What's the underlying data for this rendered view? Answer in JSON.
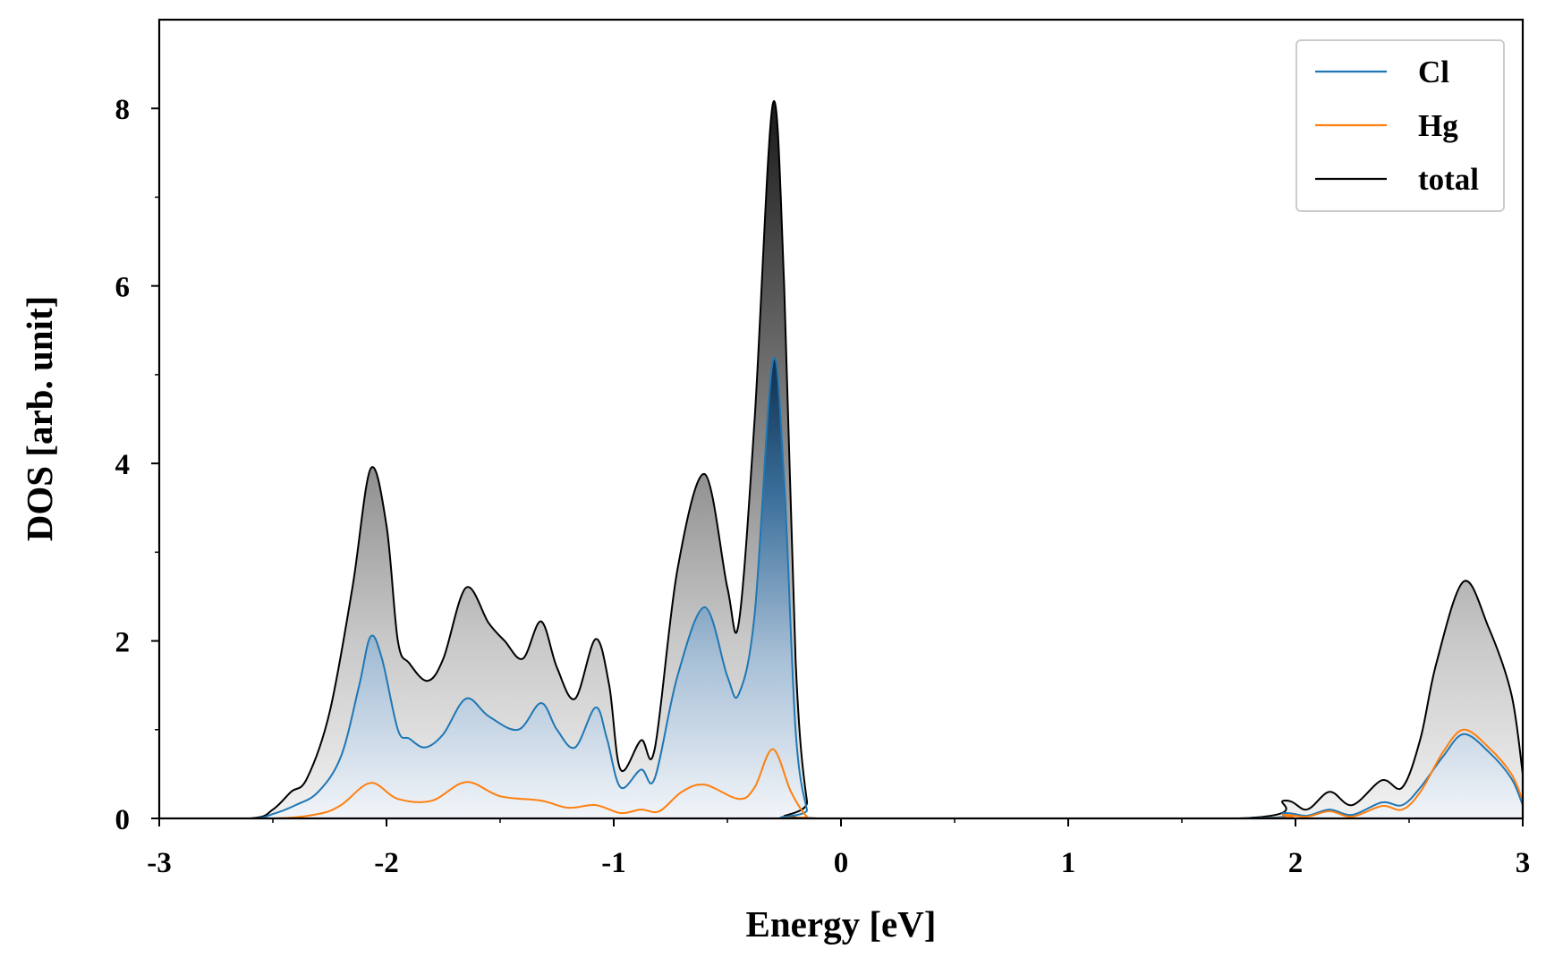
{
  "chart_data": {
    "type": "line",
    "xlabel": "Energy [eV]",
    "ylabel": "DOS [arb. unit]",
    "xlim": [
      -3,
      3
    ],
    "ylim": [
      0,
      9
    ],
    "xticks": [
      "-3",
      "-2",
      "-1",
      "0",
      "1",
      "2",
      "3"
    ],
    "yticks": [
      "0",
      "2",
      "4",
      "6",
      "8"
    ],
    "legend_position": "top-right",
    "colors": {
      "Cl": "#1f77b4",
      "Hg": "#ff7f0e",
      "total": "#000000"
    },
    "series": [
      {
        "name": "Cl",
        "color": "#1f77b4",
        "fill": "blue-gradient",
        "points": [
          [
            -3.0,
            0
          ],
          [
            -2.6,
            0
          ],
          [
            -2.5,
            0.05
          ],
          [
            -2.4,
            0.15
          ],
          [
            -2.3,
            0.3
          ],
          [
            -2.2,
            0.7
          ],
          [
            -2.12,
            1.5
          ],
          [
            -2.07,
            2.05
          ],
          [
            -2.02,
            1.8
          ],
          [
            -1.95,
            1.0
          ],
          [
            -1.9,
            0.9
          ],
          [
            -1.83,
            0.8
          ],
          [
            -1.75,
            0.95
          ],
          [
            -1.65,
            1.35
          ],
          [
            -1.55,
            1.15
          ],
          [
            -1.42,
            1.0
          ],
          [
            -1.32,
            1.3
          ],
          [
            -1.25,
            1.0
          ],
          [
            -1.17,
            0.8
          ],
          [
            -1.08,
            1.25
          ],
          [
            -1.03,
            0.9
          ],
          [
            -0.97,
            0.35
          ],
          [
            -0.88,
            0.55
          ],
          [
            -0.82,
            0.45
          ],
          [
            -0.72,
            1.6
          ],
          [
            -0.6,
            2.38
          ],
          [
            -0.5,
            1.6
          ],
          [
            -0.45,
            1.4
          ],
          [
            -0.38,
            2.3
          ],
          [
            -0.3,
            5.15
          ],
          [
            -0.25,
            3.8
          ],
          [
            -0.2,
            1.0
          ],
          [
            -0.15,
            0.1
          ],
          [
            -0.12,
            0
          ],
          [
            1.75,
            0
          ],
          [
            1.95,
            0.06
          ],
          [
            2.05,
            0.03
          ],
          [
            2.15,
            0.1
          ],
          [
            2.25,
            0.04
          ],
          [
            2.38,
            0.18
          ],
          [
            2.47,
            0.15
          ],
          [
            2.55,
            0.35
          ],
          [
            2.65,
            0.7
          ],
          [
            2.74,
            0.95
          ],
          [
            2.85,
            0.75
          ],
          [
            2.95,
            0.45
          ],
          [
            3.0,
            0.15
          ]
        ]
      },
      {
        "name": "Hg",
        "color": "#ff7f0e",
        "fill": "none",
        "points": [
          [
            -3.0,
            0
          ],
          [
            -2.5,
            0
          ],
          [
            -2.3,
            0.05
          ],
          [
            -2.2,
            0.15
          ],
          [
            -2.07,
            0.4
          ],
          [
            -1.95,
            0.22
          ],
          [
            -1.8,
            0.2
          ],
          [
            -1.65,
            0.41
          ],
          [
            -1.5,
            0.25
          ],
          [
            -1.32,
            0.2
          ],
          [
            -1.2,
            0.12
          ],
          [
            -1.08,
            0.15
          ],
          [
            -0.97,
            0.06
          ],
          [
            -0.88,
            0.1
          ],
          [
            -0.8,
            0.08
          ],
          [
            -0.7,
            0.3
          ],
          [
            -0.6,
            0.38
          ],
          [
            -0.45,
            0.22
          ],
          [
            -0.38,
            0.35
          ],
          [
            -0.3,
            0.78
          ],
          [
            -0.22,
            0.3
          ],
          [
            -0.15,
            0.02
          ],
          [
            -0.1,
            0
          ],
          [
            1.8,
            0
          ],
          [
            1.95,
            0.04
          ],
          [
            2.05,
            0.02
          ],
          [
            2.15,
            0.08
          ],
          [
            2.25,
            0.02
          ],
          [
            2.38,
            0.14
          ],
          [
            2.47,
            0.1
          ],
          [
            2.55,
            0.3
          ],
          [
            2.65,
            0.75
          ],
          [
            2.74,
            1.0
          ],
          [
            2.85,
            0.8
          ],
          [
            2.95,
            0.5
          ],
          [
            3.0,
            0.2
          ]
        ]
      },
      {
        "name": "total",
        "color": "#000000",
        "fill": "gray-gradient",
        "points": [
          [
            -3.0,
            0
          ],
          [
            -2.6,
            0
          ],
          [
            -2.5,
            0.1
          ],
          [
            -2.42,
            0.3
          ],
          [
            -2.35,
            0.45
          ],
          [
            -2.25,
            1.2
          ],
          [
            -2.15,
            2.6
          ],
          [
            -2.07,
            3.94
          ],
          [
            -2.0,
            3.3
          ],
          [
            -1.95,
            2.0
          ],
          [
            -1.9,
            1.75
          ],
          [
            -1.82,
            1.55
          ],
          [
            -1.75,
            1.8
          ],
          [
            -1.65,
            2.6
          ],
          [
            -1.55,
            2.2
          ],
          [
            -1.48,
            2.0
          ],
          [
            -1.4,
            1.8
          ],
          [
            -1.32,
            2.22
          ],
          [
            -1.25,
            1.7
          ],
          [
            -1.17,
            1.35
          ],
          [
            -1.08,
            2.02
          ],
          [
            -1.02,
            1.5
          ],
          [
            -0.97,
            0.55
          ],
          [
            -0.88,
            0.88
          ],
          [
            -0.82,
            0.78
          ],
          [
            -0.72,
            2.8
          ],
          [
            -0.6,
            3.88
          ],
          [
            -0.5,
            2.6
          ],
          [
            -0.45,
            2.2
          ],
          [
            -0.38,
            4.5
          ],
          [
            -0.3,
            8.05
          ],
          [
            -0.25,
            6.0
          ],
          [
            -0.2,
            1.8
          ],
          [
            -0.15,
            0.2
          ],
          [
            -0.1,
            0
          ],
          [
            1.75,
            0
          ],
          [
            1.95,
            0.2
          ],
          [
            2.05,
            0.1
          ],
          [
            2.15,
            0.3
          ],
          [
            2.25,
            0.15
          ],
          [
            2.38,
            0.43
          ],
          [
            2.47,
            0.35
          ],
          [
            2.55,
            0.9
          ],
          [
            2.62,
            1.75
          ],
          [
            2.74,
            2.67
          ],
          [
            2.85,
            2.15
          ],
          [
            2.95,
            1.4
          ],
          [
            3.0,
            0.5
          ]
        ]
      }
    ]
  }
}
